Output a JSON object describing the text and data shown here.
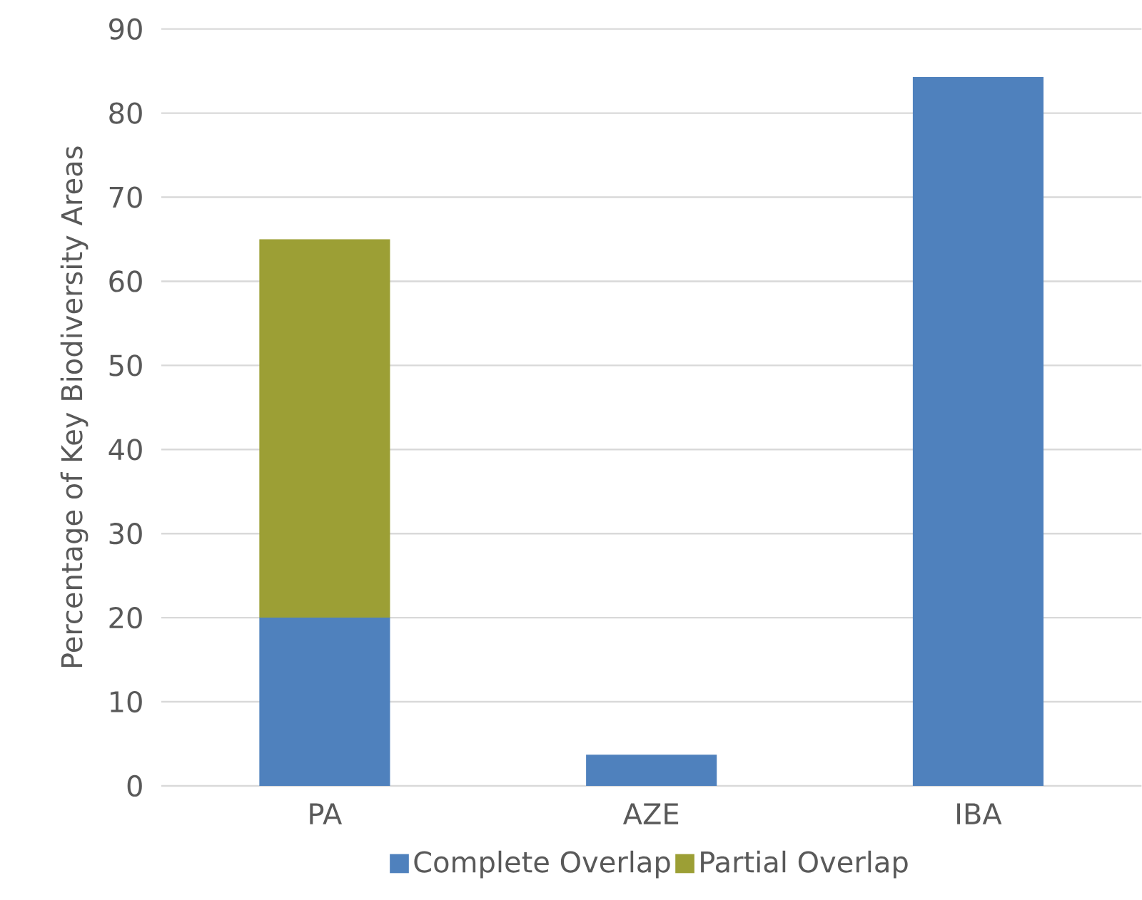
{
  "chart_data": {
    "type": "bar",
    "stacked": true,
    "ylabel": "Percentage of Key Biodiversity Areas",
    "categories": [
      "PA",
      "AZE",
      "IBA"
    ],
    "series": [
      {
        "name": "Complete Overlap",
        "color": "#4f81bd",
        "values": [
          20,
          3.7,
          84.3
        ]
      },
      {
        "name": "Partial Overlap",
        "color": "#9c9f35",
        "values": [
          45,
          null,
          null
        ]
      }
    ],
    "ylim": [
      0,
      90
    ],
    "yticks": [
      0,
      10,
      20,
      30,
      40,
      50,
      60,
      70,
      80,
      90
    ],
    "grid": "y",
    "legend": "bottom"
  }
}
